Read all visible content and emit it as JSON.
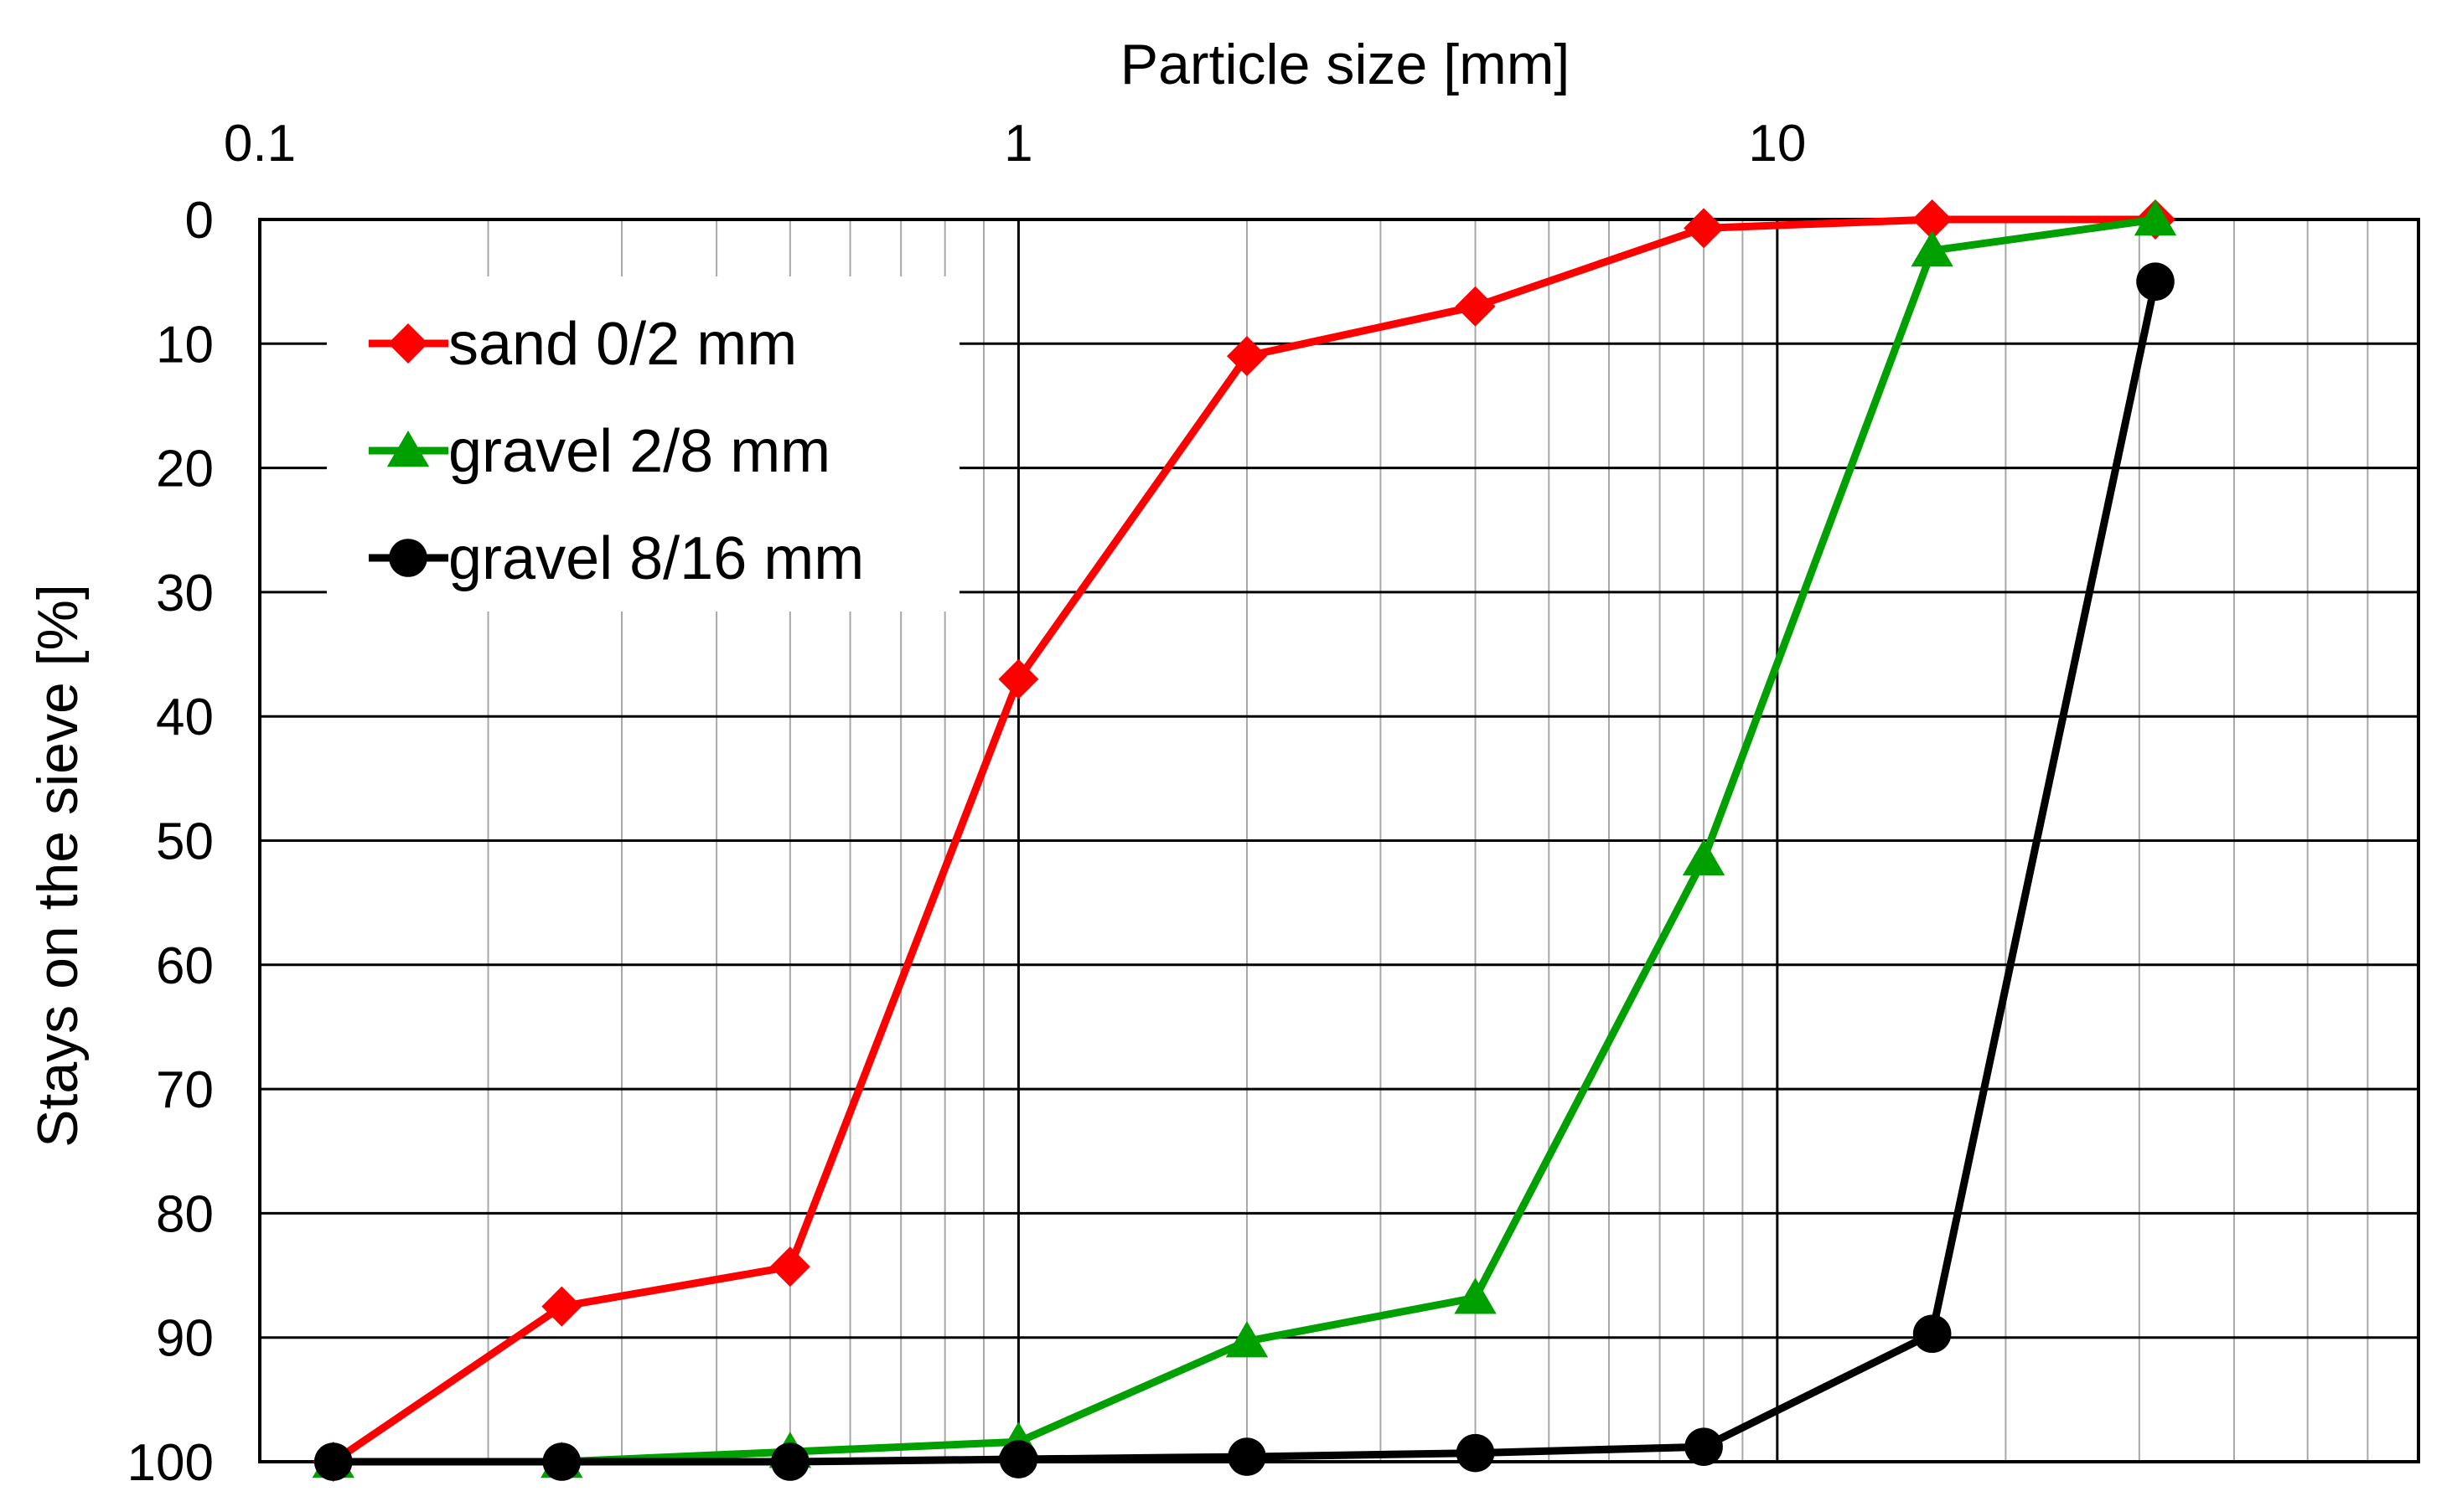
{
  "chart_data": {
    "type": "line",
    "title": "",
    "xlabel": "Particle size [mm]",
    "ylabel": "Stays on the sieve [%]",
    "x_scale": "log",
    "x_axis_position": "top",
    "y_inverted": true,
    "xlim": [
      0.1,
      70
    ],
    "ylim": [
      0,
      100
    ],
    "x_ticks": [
      {
        "value": 0.1,
        "label": "0.1"
      },
      {
        "value": 1,
        "label": "1"
      },
      {
        "value": 10,
        "label": "10"
      }
    ],
    "y_ticks": [
      {
        "value": 0,
        "label": "0"
      },
      {
        "value": 10,
        "label": "10"
      },
      {
        "value": 20,
        "label": "20"
      },
      {
        "value": 30,
        "label": "30"
      },
      {
        "value": 40,
        "label": "40"
      },
      {
        "value": 50,
        "label": "50"
      },
      {
        "value": 60,
        "label": "60"
      },
      {
        "value": 70,
        "label": "70"
      },
      {
        "value": 80,
        "label": "80"
      },
      {
        "value": 90,
        "label": "90"
      },
      {
        "value": 100,
        "label": "100"
      }
    ],
    "grid": true,
    "legend_position": "top-left",
    "series": [
      {
        "name": "sand 0/2 mm",
        "color": "#ff0000",
        "marker": "diamond",
        "x": [
          0.125,
          0.25,
          0.5,
          1,
          2,
          4,
          8,
          16,
          31.5
        ],
        "y": [
          100,
          87.5,
          84.3,
          37,
          11,
          7,
          0.7,
          0,
          0
        ]
      },
      {
        "name": "gravel 2/8 mm",
        "color": "#00a000",
        "marker": "triangle",
        "x": [
          0.125,
          0.25,
          0.5,
          1,
          2,
          4,
          8,
          16,
          31.5
        ],
        "y": [
          100,
          100,
          99.2,
          98.4,
          90.3,
          86.8,
          51.5,
          2.5,
          0
        ]
      },
      {
        "name": "gravel 8/16 mm",
        "color": "#000000",
        "marker": "circle",
        "x": [
          0.125,
          0.25,
          0.5,
          1,
          2,
          4,
          8,
          16,
          31.5
        ],
        "y": [
          100,
          100,
          100,
          99.8,
          99.6,
          99.3,
          98.8,
          89.7,
          5
        ]
      }
    ]
  }
}
